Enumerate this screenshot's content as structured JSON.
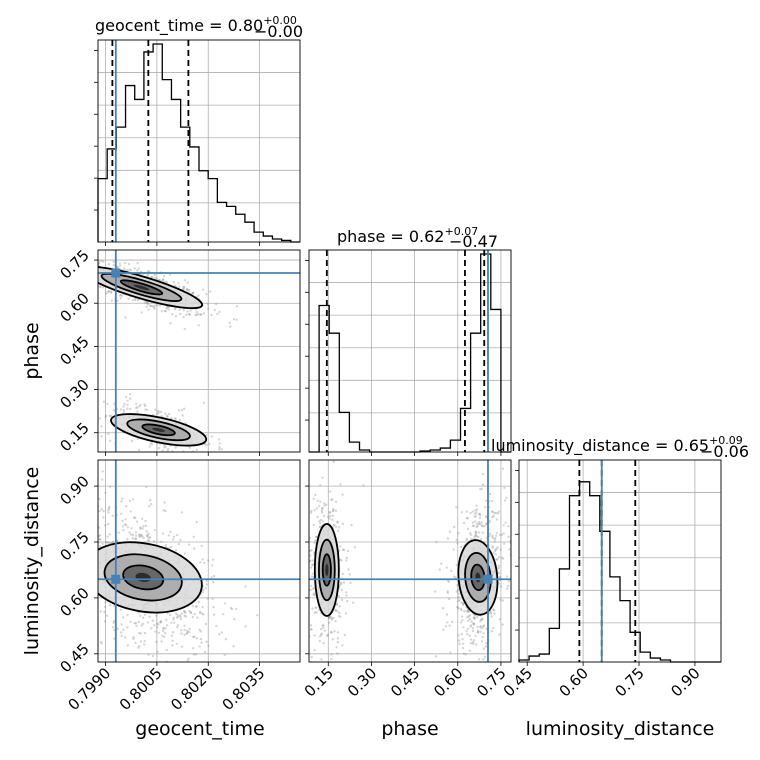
{
  "chart_data": {
    "type": "corner",
    "parameters": [
      "geocent_time",
      "phase",
      "luminosity_distance"
    ],
    "truths": {
      "geocent_time": 0.7993,
      "phase": 0.705,
      "luminosity_distance": 0.65
    },
    "titles": [
      {
        "param": "geocent_time",
        "text": "geocent_time = 0.80",
        "sup": "+0.00",
        "sub": "−0.00"
      },
      {
        "param": "phase",
        "text": "phase = 0.62",
        "sup": "+0.07",
        "sub": "−0.47"
      },
      {
        "param": "luminosity_distance",
        "text": "luminosity_distance = 0.65",
        "sup": "+0.09",
        "sub": "−0.06"
      }
    ],
    "axis_labels": {
      "geocent_time": "geocent_time",
      "phase": "phase",
      "luminosity_distance": "luminosity_distance"
    },
    "ticks": {
      "geocent_time": [
        "0.7990",
        "0.8005",
        "0.8020",
        "0.8035"
      ],
      "phase": [
        "0.15",
        "0.30",
        "0.45",
        "0.60",
        "0.75"
      ],
      "luminosity_distance": [
        "0.45",
        "0.60",
        "0.75",
        "0.90"
      ]
    },
    "tick_values": {
      "geocent_time": [
        0.799,
        0.8005,
        0.802,
        0.8035
      ],
      "phase": [
        0.15,
        0.3,
        0.45,
        0.6,
        0.75
      ],
      "luminosity_distance": [
        0.45,
        0.6,
        0.75,
        0.9
      ]
    },
    "ranges": {
      "geocent_time": [
        0.79878,
        0.80468
      ],
      "phase": [
        0.083,
        0.785
      ],
      "luminosity_distance": [
        0.428,
        0.97
      ]
    },
    "quantile_lines": {
      "geocent_time": [
        0.7992,
        0.80025,
        0.80142
      ],
      "phase": [
        0.145,
        0.625,
        0.692
      ],
      "luminosity_distance": [
        0.59,
        0.65,
        0.74
      ]
    },
    "histograms": {
      "geocent_time": {
        "range": [
          0.79878,
          0.80468
        ],
        "counts": [
          0.32,
          0.47,
          0.58,
          0.79,
          0.72,
          0.96,
          1.0,
          0.82,
          0.72,
          0.58,
          0.48,
          0.36,
          0.32,
          0.2,
          0.18,
          0.14,
          0.1,
          0.05,
          0.03,
          0.015,
          0.008,
          0.0
        ]
      },
      "phase": {
        "range": [
          0.083,
          0.785
        ],
        "counts": [
          0.0,
          0.74,
          0.6,
          0.2,
          0.05,
          0.01,
          0.0,
          0.0,
          0.0,
          0.0,
          0.0,
          0.005,
          0.01,
          0.02,
          0.06,
          0.22,
          0.6,
          1.0,
          0.72,
          0.0
        ]
      },
      "luminosity_distance": {
        "range": [
          0.428,
          0.97
        ],
        "counts": [
          0.01,
          0.03,
          0.04,
          0.17,
          0.47,
          0.84,
          0.91,
          0.84,
          0.66,
          0.43,
          0.31,
          0.15,
          0.05,
          0.02,
          0.01,
          0.0,
          0.0,
          0.0,
          0.0,
          0.0
        ]
      }
    },
    "grid": true,
    "colors": {
      "truth": "#4682b4",
      "hist": "#000000",
      "points": "#888888",
      "density": "#000000"
    }
  }
}
